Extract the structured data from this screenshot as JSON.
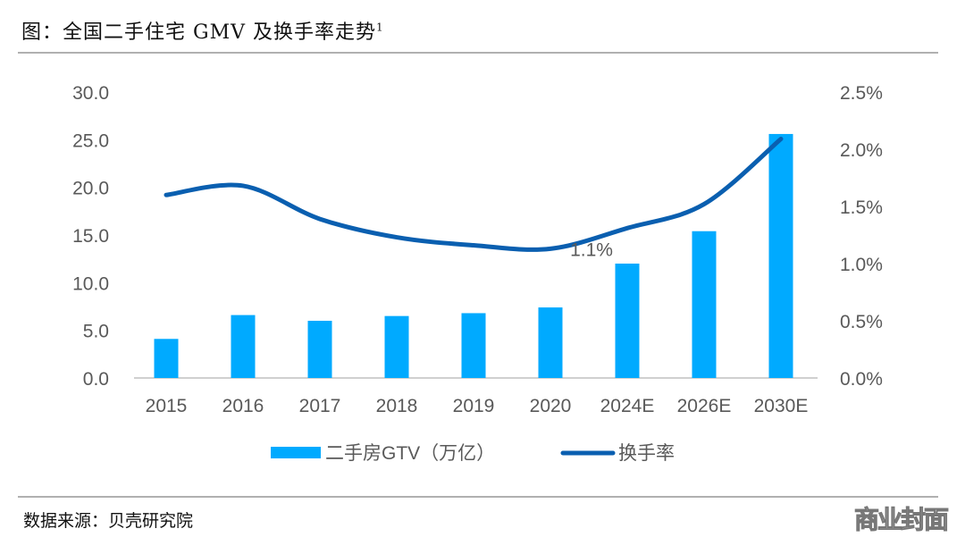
{
  "title": "图：全国二手住宅 GMV 及换手率走势",
  "title_sup": "1",
  "source": "数据来源：贝壳研究院",
  "watermark": "商业封面",
  "chart_data": {
    "type": "bar+line",
    "categories": [
      "2015",
      "2016",
      "2017",
      "2018",
      "2019",
      "2020",
      "2024E",
      "2026E",
      "2030E"
    ],
    "series": [
      {
        "name": "二手房GTV（万亿）",
        "type": "bar",
        "axis": "left",
        "color": "#00aaff",
        "values": [
          4.1,
          6.6,
          6.0,
          6.5,
          6.8,
          7.4,
          12.0,
          15.4,
          25.6
        ]
      },
      {
        "name": "换手率",
        "type": "line",
        "axis": "right",
        "color": "#0a5fb0",
        "values": [
          1.6,
          1.68,
          1.39,
          1.23,
          1.16,
          1.13,
          1.31,
          1.52,
          2.09
        ]
      }
    ],
    "annotations": [
      {
        "category": "2020",
        "text": "1.1%"
      }
    ],
    "left_axis": {
      "ylim": [
        0,
        30
      ],
      "ticks": [
        "0.0",
        "5.0",
        "10.0",
        "15.0",
        "20.0",
        "25.0",
        "30.0"
      ]
    },
    "right_axis": {
      "ylim": [
        0,
        2.5
      ],
      "ticks": [
        "0.0%",
        "0.5%",
        "1.0%",
        "1.5%",
        "2.0%",
        "2.5%"
      ]
    },
    "grid": false,
    "legend_position": "bottom"
  }
}
